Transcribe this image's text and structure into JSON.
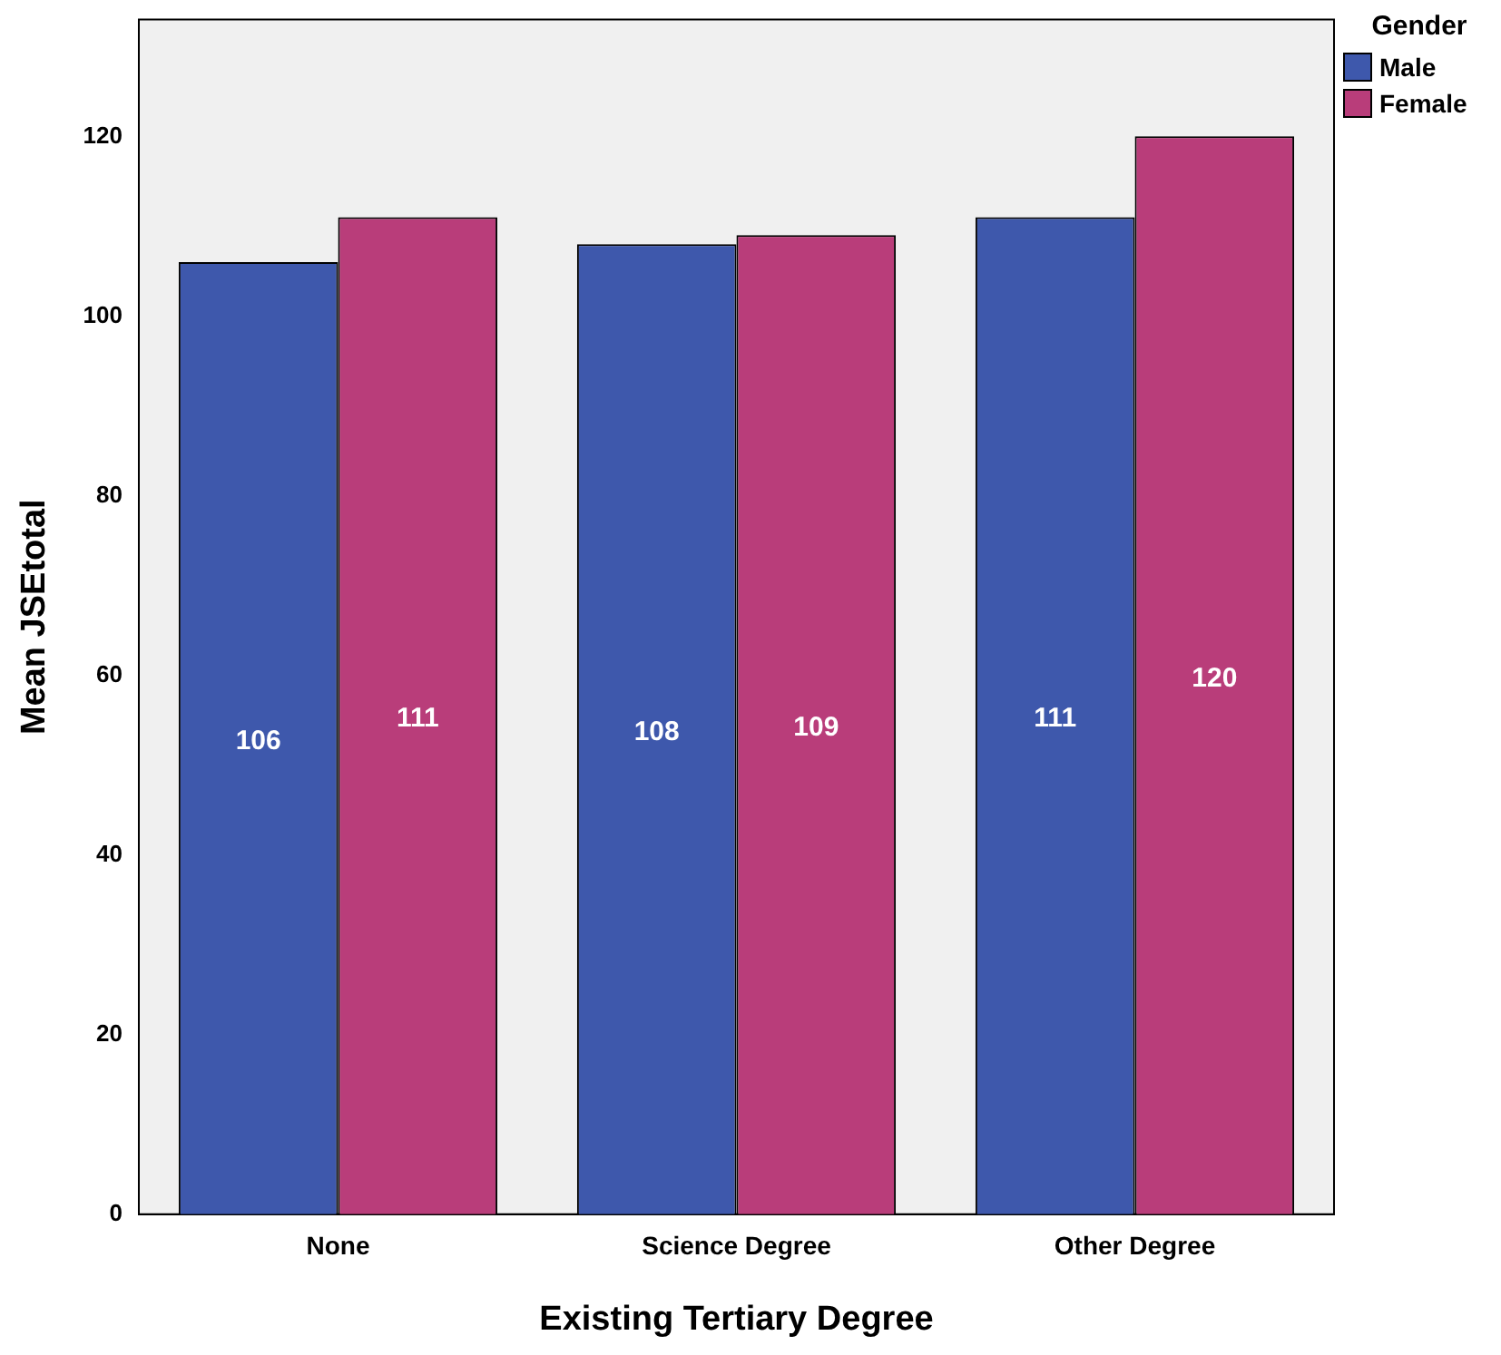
{
  "chart_data": {
    "type": "bar",
    "xlabel": "Existing Tertiary Degree",
    "ylabel": "Mean JSEtotal",
    "legend_title": "Gender",
    "categories": [
      "None",
      "Science Degree",
      "Other Degree"
    ],
    "series": [
      {
        "name": "Male",
        "color": "#3e58ac",
        "values": [
          106,
          108,
          111
        ]
      },
      {
        "name": "Female",
        "color": "#b93d7a",
        "values": [
          111,
          109,
          120
        ]
      }
    ],
    "ylim": [
      0,
      133
    ],
    "yticks": [
      0,
      20,
      40,
      60,
      80,
      100,
      120
    ],
    "grid": false,
    "legend": "top right",
    "data_labels": true
  }
}
